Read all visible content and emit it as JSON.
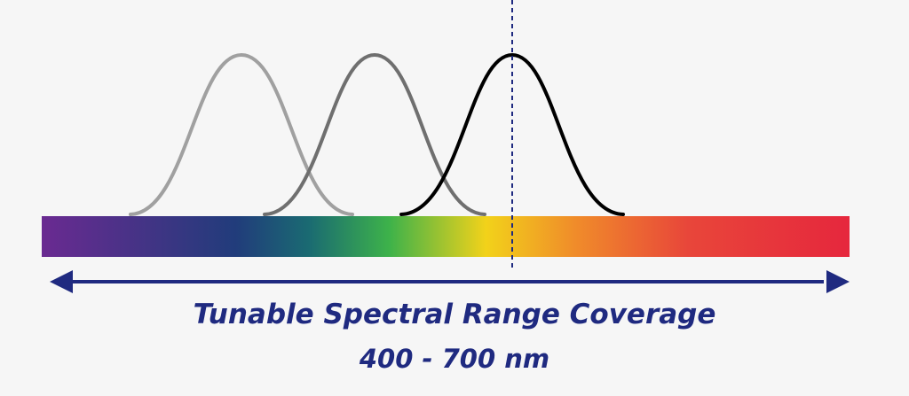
{
  "caption": {
    "title": "Tunable Spectral Range Coverage",
    "range": "400 - 700 nm"
  },
  "colors": {
    "background": "#f6f6f6",
    "accent": "#1f2a80",
    "curve_light": "#a0a0a0",
    "curve_mid": "#6f6f6f",
    "curve_dark": "#000000"
  },
  "spectrum": {
    "stops": [
      "#6a2a91",
      "#213c7b",
      "#1a6a72",
      "#3db24a",
      "#f2d21a",
      "#f08c2a",
      "#e8463a",
      "#e6273d"
    ]
  },
  "curves": [
    {
      "name": "curve-light",
      "color_key": "curve_light"
    },
    {
      "name": "curve-mid",
      "color_key": "curve_mid"
    },
    {
      "name": "curve-dark",
      "color_key": "curve_dark"
    }
  ]
}
